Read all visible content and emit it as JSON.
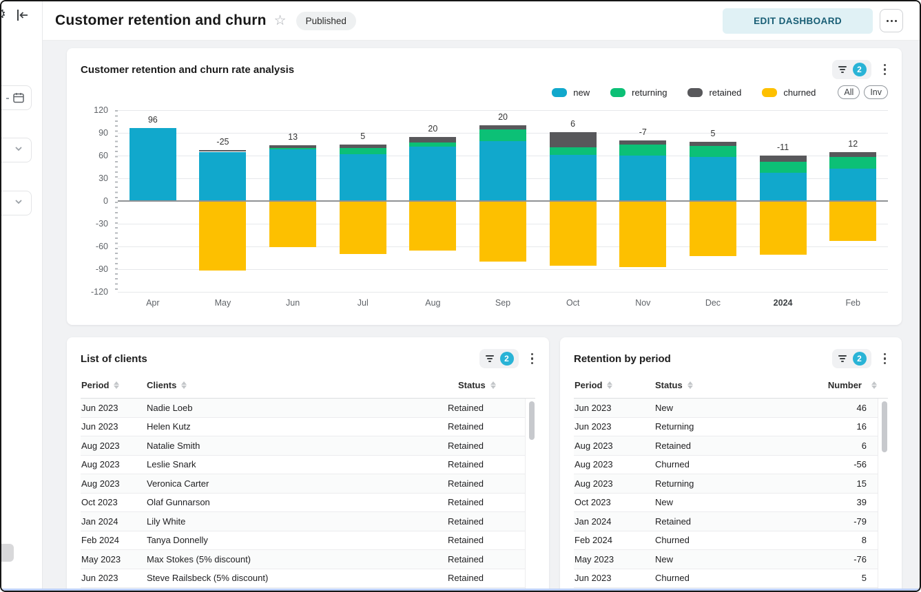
{
  "header": {
    "title": "Customer retention and churn",
    "status_badge": "Published",
    "edit_button_label": "EDIT DASHBOARD"
  },
  "sidebar": {
    "icons": [
      "settings-icon",
      "collapse-panel-icon",
      "calendar-icon",
      "chevron-down-icon",
      "chevron-down-icon"
    ]
  },
  "chart_card": {
    "title": "Customer retention and churn rate analysis",
    "filter_count": "2",
    "view_buttons": [
      "All",
      "Inv"
    ],
    "chart_data": {
      "type": "bar",
      "stacked": true,
      "categories": [
        "Apr",
        "May",
        "Jun",
        "Jul",
        "Aug",
        "Sep",
        "Oct",
        "Nov",
        "Dec",
        "2024",
        "Feb"
      ],
      "bold_category": "2024",
      "series": [
        {
          "name": "new",
          "color": "#11a8cc",
          "values": [
            96,
            65,
            68,
            62,
            72,
            79,
            61,
            60,
            58,
            37,
            43
          ]
        },
        {
          "name": "returning",
          "color": "#0cc076",
          "values": [
            0,
            0,
            2,
            8,
            5,
            16,
            10,
            15,
            15,
            15,
            15
          ]
        },
        {
          "name": "retained",
          "color": "#58585b",
          "values": [
            0,
            2,
            4,
            5,
            8,
            5,
            20,
            5,
            5,
            8,
            7
          ]
        },
        {
          "name": "churned",
          "color": "#fdc000",
          "values": [
            0,
            -92,
            -61,
            -70,
            -65,
            -80,
            -85,
            -87,
            -73,
            -71,
            -53
          ]
        }
      ],
      "totals": [
        96,
        -25,
        13,
        5,
        20,
        20,
        6,
        -7,
        5,
        -11,
        12
      ],
      "ylim": [
        -120,
        120
      ],
      "ytick_step": 30,
      "grid": true,
      "legend_position": "top-right"
    }
  },
  "clients_card": {
    "title": "List of clients",
    "filter_count": "2",
    "columns": [
      "Period",
      "Clients",
      "Status"
    ],
    "rows": [
      {
        "period": "Jun 2023",
        "client": "Nadie Loeb",
        "status": "Retained"
      },
      {
        "period": "Jun 2023",
        "client": "Helen Kutz",
        "status": "Retained"
      },
      {
        "period": "Aug 2023",
        "client": "Natalie Smith",
        "status": "Retained"
      },
      {
        "period": "Aug 2023",
        "client": "Leslie Snark",
        "status": "Retained"
      },
      {
        "period": "Aug 2023",
        "client": "Veronica Carter",
        "status": "Retained"
      },
      {
        "period": "Oct 2023",
        "client": "Olaf Gunnarson",
        "status": "Retained"
      },
      {
        "period": "Jan 2024",
        "client": "Lily White",
        "status": "Retained"
      },
      {
        "period": "Feb 2024",
        "client": "Tanya Donnelly",
        "status": "Retained"
      },
      {
        "period": "May 2023",
        "client": "Max Stokes (5% discount)",
        "status": "Retained"
      },
      {
        "period": "Jun 2023",
        "client": "Steve Railsbeck (5% discount)",
        "status": "Retained"
      }
    ]
  },
  "retention_card": {
    "title": "Retention by period",
    "filter_count": "2",
    "columns": [
      "Period",
      "Status",
      "Number"
    ],
    "rows": [
      {
        "period": "Jun 2023",
        "status": "New",
        "number": "46"
      },
      {
        "period": "Jun 2023",
        "status": "Returning",
        "number": "16"
      },
      {
        "period": "Aug 2023",
        "status": "Retained",
        "number": "6"
      },
      {
        "period": "Aug 2023",
        "status": "Churned",
        "number": "-56"
      },
      {
        "period": "Aug 2023",
        "status": "Returning",
        "number": "15"
      },
      {
        "period": "Oct 2023",
        "status": "New",
        "number": "39"
      },
      {
        "period": "Jan 2024",
        "status": "Retained",
        "number": "-79"
      },
      {
        "period": "Feb 2024",
        "status": "Churned",
        "number": "8"
      },
      {
        "period": "May 2023",
        "status": "New",
        "number": "-76"
      },
      {
        "period": "Jun 2023",
        "status": "Churned",
        "number": "5"
      }
    ]
  },
  "colors": {
    "accent_cyan": "#29b3d6",
    "edit_button_bg": "#e0f1f5",
    "edit_button_text": "#175d74",
    "page_bg": "#f1f2f4",
    "zero_line": "#8f9194",
    "bottom_edge_glow": "#bccff6"
  }
}
